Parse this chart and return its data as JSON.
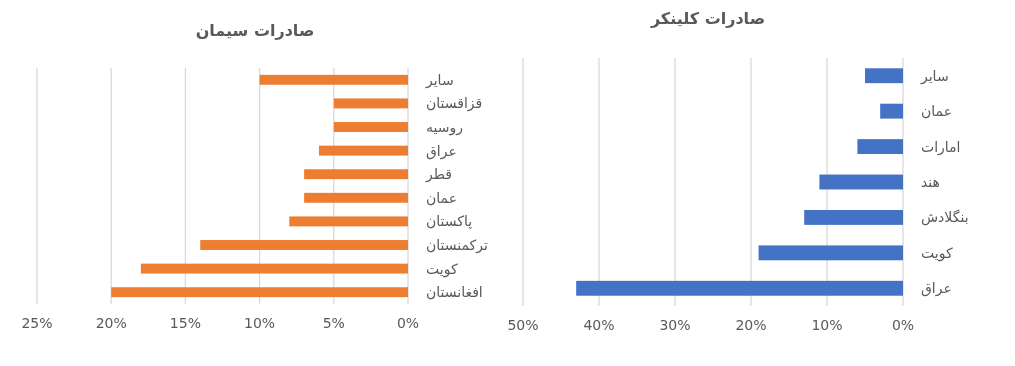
{
  "chart_data": [
    {
      "type": "bar",
      "orientation": "horizontal",
      "title": "صادرات سیمان",
      "categories": [
        "سایر",
        "قزاقستان",
        "روسیه",
        "عراق",
        "قطر",
        "عمان",
        "پاکستان",
        "ترکمنستان",
        "کویت",
        "افغانستان"
      ],
      "values": [
        10,
        5,
        5,
        6,
        7,
        7,
        8,
        14,
        18,
        20
      ],
      "color": "#ed7d31",
      "xlim": [
        25,
        0
      ],
      "xticks": [
        {
          "value": 25,
          "label": "25%"
        },
        {
          "value": 20,
          "label": "20%"
        },
        {
          "value": 15,
          "label": "15%"
        },
        {
          "value": 10,
          "label": "10%"
        },
        {
          "value": 5,
          "label": "5%"
        },
        {
          "value": 0,
          "label": "0%"
        }
      ],
      "grid": "x"
    },
    {
      "type": "bar",
      "orientation": "horizontal",
      "title": "صادرات کلینکر",
      "categories": [
        "سایر",
        "عمان",
        "امارات",
        "هند",
        "بنگلادش",
        "کویت",
        "عراق"
      ],
      "values": [
        5,
        3,
        6,
        11,
        13,
        19,
        43
      ],
      "color": "#4472c4",
      "xlim": [
        50,
        0
      ],
      "xticks": [
        {
          "value": 50,
          "label": "50%"
        },
        {
          "value": 40,
          "label": "40%"
        },
        {
          "value": 30,
          "label": "30%"
        },
        {
          "value": 20,
          "label": "20%"
        },
        {
          "value": 10,
          "label": "10%"
        },
        {
          "value": 0,
          "label": "0%"
        }
      ],
      "grid": "x"
    }
  ]
}
